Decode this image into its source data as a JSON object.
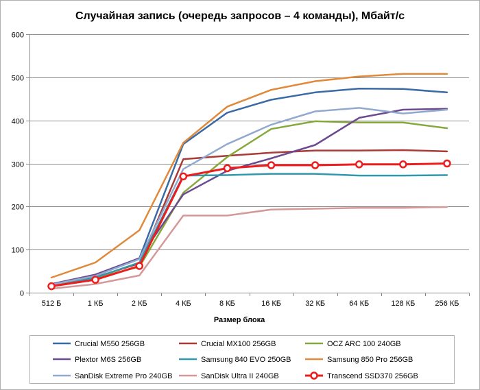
{
  "chart_data": {
    "type": "line",
    "title": "Случайная запись (очередь запросов – 4 команды), Мбайт/с",
    "xlabel": "Размер блока",
    "ylabel": "",
    "categories": [
      "512 Б",
      "1 КБ",
      "2 КБ",
      "4 КБ",
      "8 КБ",
      "16 КБ",
      "32 КБ",
      "64 КБ",
      "128 КБ",
      "256 КБ"
    ],
    "ylim": [
      0,
      600
    ],
    "yticks": [
      0,
      100,
      200,
      300,
      400,
      500,
      600
    ],
    "grid": true,
    "legend_position": "bottom",
    "series": [
      {
        "name": "Crucial M550 256GB",
        "color": "#3a6aa5",
        "markers": false,
        "values": [
          18,
          40,
          80,
          345,
          418,
          448,
          465,
          474,
          473,
          465
        ]
      },
      {
        "name": "Crucial MX100 256GB",
        "color": "#a83a38",
        "markers": false,
        "values": [
          17,
          36,
          68,
          310,
          318,
          325,
          330,
          330,
          331,
          328
        ]
      },
      {
        "name": "OCZ ARC 100 240GB",
        "color": "#87a83c",
        "markers": false,
        "values": [
          16,
          34,
          60,
          232,
          315,
          380,
          398,
          395,
          395,
          382
        ]
      },
      {
        "name": "Plextor M6S 256GB",
        "color": "#6c4a8f",
        "markers": false,
        "values": [
          20,
          42,
          80,
          228,
          283,
          312,
          343,
          406,
          425,
          427
        ]
      },
      {
        "name": "Samsung 840 EVO 250GB",
        "color": "#2f98ad",
        "markers": false,
        "values": [
          14,
          35,
          70,
          272,
          273,
          276,
          276,
          272,
          272,
          273
        ]
      },
      {
        "name": "Samsung 850 Pro 256GB",
        "color": "#e0893a",
        "markers": false,
        "values": [
          35,
          70,
          145,
          348,
          432,
          471,
          491,
          502,
          508,
          508
        ]
      },
      {
        "name": "SanDisk Extreme Pro 240GB",
        "color": "#92a9cf",
        "markers": false,
        "values": [
          19,
          39,
          78,
          287,
          345,
          390,
          421,
          429,
          416,
          425
        ]
      },
      {
        "name": "SanDisk Ultra II 240GB",
        "color": "#d59898",
        "markers": false,
        "values": [
          9,
          20,
          40,
          179,
          179,
          193,
          195,
          197,
          197,
          199
        ]
      },
      {
        "name": "Transcend SSD370 256GB",
        "color": "#ee1c1c",
        "markers": true,
        "values": [
          15,
          30,
          62,
          270,
          289,
          296,
          296,
          298,
          298,
          300
        ]
      }
    ]
  }
}
